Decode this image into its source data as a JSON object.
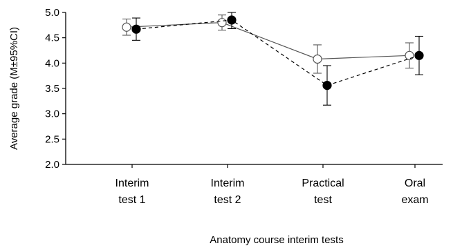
{
  "chart_data": {
    "type": "line",
    "title": "",
    "xlabel": "Anatomy course interim tests",
    "ylabel": "Average grade (M±95%CI)",
    "ylim": [
      2.0,
      5.0
    ],
    "yticks": [
      "2.0",
      "2.5",
      "3.0",
      "3.5",
      "4.0",
      "4.5",
      "5.0"
    ],
    "categories": [
      [
        "Interim",
        "test 1"
      ],
      [
        "Interim",
        "test 2"
      ],
      [
        "Practical",
        "test"
      ],
      [
        "Oral",
        "exam"
      ]
    ],
    "grid": false,
    "legend": "none",
    "series": [
      {
        "marker": "open-circle",
        "line": "solid",
        "color": "#555555",
        "values": [
          4.71,
          4.8,
          4.08,
          4.15
        ],
        "ci_low": [
          4.55,
          4.65,
          3.8,
          3.9
        ],
        "ci_high": [
          4.87,
          4.95,
          4.36,
          4.4
        ]
      },
      {
        "marker": "filled-circle",
        "line": "dashed",
        "color": "#000000",
        "values": [
          4.67,
          4.85,
          3.56,
          4.15
        ],
        "ci_low": [
          4.45,
          4.68,
          3.17,
          3.77
        ],
        "ci_high": [
          4.89,
          5.0,
          3.95,
          4.53
        ]
      }
    ]
  }
}
